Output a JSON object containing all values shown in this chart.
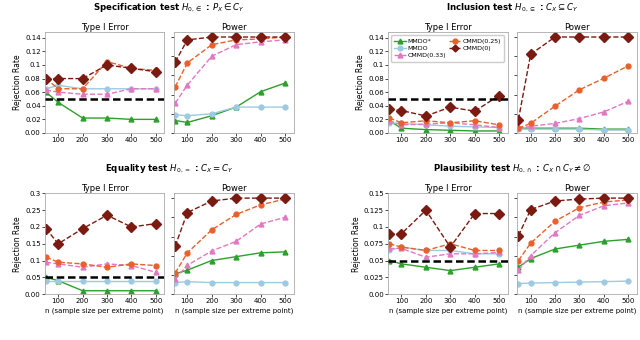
{
  "x": [
    50,
    100,
    200,
    300,
    400,
    500
  ],
  "spec_type1": {
    "mmdq_star": [
      0.06,
      0.045,
      0.022,
      0.022,
      0.02,
      0.02
    ],
    "mmdq": [
      0.065,
      0.07,
      0.065,
      0.065,
      0.065,
      0.065
    ],
    "cmmd_033": [
      0.063,
      0.06,
      0.057,
      0.057,
      0.065,
      0.065
    ],
    "cmmd_025": [
      0.08,
      0.065,
      0.065,
      0.105,
      0.095,
      0.092
    ],
    "cmmd_0": [
      0.08,
      0.08,
      0.08,
      0.1,
      0.095,
      0.09
    ]
  },
  "spec_power": {
    "mmdq_star": [
      0.13,
      0.11,
      0.18,
      0.27,
      0.43,
      0.52
    ],
    "mmdq": [
      0.19,
      0.18,
      0.2,
      0.27,
      0.27,
      0.27
    ],
    "cmmd_033": [
      0.31,
      0.5,
      0.8,
      0.92,
      0.95,
      0.97
    ],
    "cmmd_025": [
      0.48,
      0.73,
      0.92,
      0.97,
      0.98,
      1.0
    ],
    "cmmd_0": [
      0.74,
      0.97,
      1.0,
      1.0,
      1.0,
      1.0
    ]
  },
  "incl_type1": {
    "mmdq_star": [
      0.018,
      0.007,
      0.005,
      0.004,
      0.003,
      0.003
    ],
    "mmdq": [
      0.015,
      0.014,
      0.012,
      0.01,
      0.009,
      0.008
    ],
    "cmmd_033": [
      0.018,
      0.012,
      0.013,
      0.015,
      0.012,
      0.008
    ],
    "cmmd_025": [
      0.022,
      0.015,
      0.018,
      0.015,
      0.018,
      0.012
    ],
    "cmmd_0": [
      0.035,
      0.033,
      0.025,
      0.038,
      0.032,
      0.055
    ]
  },
  "incl_power": {
    "mmdq_star": [
      0.05,
      0.05,
      0.05,
      0.05,
      0.04,
      0.04
    ],
    "mmdq": [
      0.04,
      0.04,
      0.04,
      0.04,
      0.03,
      0.03
    ],
    "cmmd_033": [
      0.05,
      0.07,
      0.1,
      0.15,
      0.22,
      0.33
    ],
    "cmmd_025": [
      0.05,
      0.1,
      0.28,
      0.45,
      0.57,
      0.7
    ],
    "cmmd_0": [
      0.14,
      0.82,
      1.0,
      1.0,
      1.0,
      1.0
    ]
  },
  "eq_type1": {
    "mmdq_star": [
      0.05,
      0.04,
      0.01,
      0.01,
      0.01,
      0.01
    ],
    "mmdq": [
      0.04,
      0.04,
      0.04,
      0.04,
      0.04,
      0.04
    ],
    "cmmd_033": [
      0.095,
      0.09,
      0.08,
      0.09,
      0.085,
      0.065
    ],
    "cmmd_025": [
      0.11,
      0.095,
      0.09,
      0.08,
      0.09,
      0.085
    ],
    "cmmd_0": [
      0.195,
      0.15,
      0.195,
      0.235,
      0.2,
      0.21
    ]
  },
  "eq_power": {
    "mmdq_star": [
      0.21,
      0.25,
      0.35,
      0.39,
      0.43,
      0.44
    ],
    "mmdq": [
      0.12,
      0.13,
      0.12,
      0.12,
      0.12,
      0.12
    ],
    "cmmd_033": [
      0.16,
      0.3,
      0.45,
      0.55,
      0.73,
      0.8
    ],
    "cmmd_025": [
      0.22,
      0.43,
      0.67,
      0.83,
      0.93,
      0.99
    ],
    "cmmd_0": [
      0.5,
      0.85,
      0.97,
      1.0,
      1.0,
      1.0
    ]
  },
  "plaus_type1": {
    "mmdq_star": [
      0.05,
      0.045,
      0.04,
      0.035,
      0.04,
      0.045
    ],
    "mmdq": [
      0.065,
      0.07,
      0.065,
      0.065,
      0.06,
      0.06
    ],
    "cmmd_033": [
      0.068,
      0.068,
      0.055,
      0.06,
      0.06,
      0.062
    ],
    "cmmd_025": [
      0.075,
      0.07,
      0.065,
      0.075,
      0.065,
      0.065
    ],
    "cmmd_0": [
      0.09,
      0.09,
      0.125,
      0.07,
      0.12,
      0.12
    ]
  },
  "plaus_power": {
    "mmdq_star": [
      0.28,
      0.37,
      0.47,
      0.51,
      0.55,
      0.57
    ],
    "mmdq": [
      0.11,
      0.115,
      0.12,
      0.125,
      0.13,
      0.135
    ],
    "cmmd_033": [
      0.25,
      0.4,
      0.64,
      0.82,
      0.92,
      0.95
    ],
    "cmmd_025": [
      0.35,
      0.53,
      0.76,
      0.9,
      0.96,
      0.98
    ],
    "cmmd_0": [
      0.61,
      0.88,
      0.97,
      0.99,
      1.0,
      1.0
    ]
  },
  "colors": {
    "mmdq_star": "#2ca02c",
    "mmdq": "#9ecae1",
    "cmmd_033": "#e377c2",
    "cmmd_025": "#e8602c",
    "cmmd_0": "#7b1a10"
  },
  "significance": 0.05,
  "panel_titles": [
    "Specification test $H_{0,\\in}$ : $P_X \\in C_Y$",
    "Inclusion test $H_{0,\\subseteq}$ : $C_X \\subseteq C_Y$",
    "Equality test $H_{0,=}$ : $C_X = C_Y$",
    "Plausibility test $H_{0,\\cap}$ : $C_X \\cap C_Y \\neq \\varnothing$"
  ]
}
